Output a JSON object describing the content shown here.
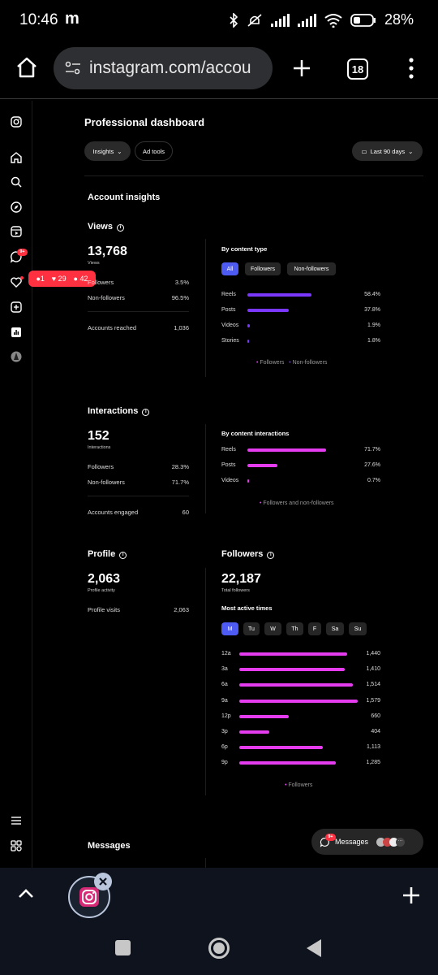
{
  "status_bar": {
    "time": "10:46",
    "app_glyph": "m",
    "battery": "28%",
    "icons": [
      "bluetooth-icon",
      "mute-icon",
      "signal-icon",
      "wifi-icon",
      "battery-icon"
    ]
  },
  "browser": {
    "url": "instagram.com/accou",
    "tab_count": "18"
  },
  "rail": {
    "notification_badge": "9+",
    "popup": {
      "comments": "1",
      "likes": "29",
      "follows": "42"
    }
  },
  "dashboard": {
    "title": "Professional dashboard",
    "tabs": [
      "Insights",
      "Ad tools"
    ],
    "date_range": "Last 90 days"
  },
  "account_insights": {
    "heading": "Account insights",
    "views": {
      "label": "Views",
      "value": "13,768",
      "sub": "Views",
      "followers_label": "Followers",
      "followers_value": "3.5%",
      "nonfollowers_label": "Non-followers",
      "nonfollowers_value": "96.5%",
      "reached_label": "Accounts reached",
      "reached_value": "1,036"
    },
    "by_content_type": {
      "label": "By content type",
      "filters": [
        "All",
        "Followers",
        "Non-followers"
      ],
      "rows": [
        {
          "label": "Reels",
          "value": "58.4%",
          "pct": 58.4
        },
        {
          "label": "Posts",
          "value": "37.8%",
          "pct": 37.8
        },
        {
          "label": "Videos",
          "value": "1.9%",
          "pct": 1.9
        },
        {
          "label": "Stories",
          "value": "1.8%",
          "pct": 1.8
        }
      ],
      "legend_followers": "Followers",
      "legend_nonfollowers": "Non-followers"
    },
    "interactions": {
      "label": "Interactions",
      "value": "152",
      "sub": "Interactions",
      "followers_label": "Followers",
      "followers_value": "28.3%",
      "nonfollowers_label": "Non-followers",
      "nonfollowers_value": "71.7%",
      "engaged_label": "Accounts engaged",
      "engaged_value": "60"
    },
    "by_content_interactions": {
      "label": "By content interactions",
      "rows": [
        {
          "label": "Reels",
          "value": "71.7%",
          "pct": 71.7
        },
        {
          "label": "Posts",
          "value": "27.6%",
          "pct": 27.6
        },
        {
          "label": "Videos",
          "value": "0.7%",
          "pct": 0.7
        }
      ],
      "legend": "Followers and non-followers"
    },
    "profile": {
      "label": "Profile",
      "value": "2,063",
      "sub": "Profile activity",
      "visits_label": "Profile visits",
      "visits_value": "2,063"
    },
    "followers": {
      "label": "Followers",
      "value": "22,187",
      "sub": "Total followers",
      "most_active": "Most active times",
      "days": [
        "M",
        "Tu",
        "W",
        "Th",
        "F",
        "Sa",
        "Su"
      ],
      "times": [
        {
          "label": "12a",
          "value": "1,440",
          "n": 1440
        },
        {
          "label": "3a",
          "value": "1,410",
          "n": 1410
        },
        {
          "label": "6a",
          "value": "1,514",
          "n": 1514
        },
        {
          "label": "9a",
          "value": "1,579",
          "n": 1579
        },
        {
          "label": "12p",
          "value": "660",
          "n": 660
        },
        {
          "label": "3p",
          "value": "404",
          "n": 404
        },
        {
          "label": "6p",
          "value": "1,113",
          "n": 1113
        },
        {
          "label": "9p",
          "value": "1,285",
          "n": 1285
        }
      ],
      "legend": "Followers"
    },
    "messages": {
      "label": "Messages"
    }
  },
  "messages_button": {
    "label": "Messages",
    "badge": "9+"
  },
  "colors": {
    "accent": "#4e5bf2",
    "purple_bar": "#7a38ff",
    "pink_bar": "#e63cf0",
    "badge_red": "#ff3040"
  }
}
